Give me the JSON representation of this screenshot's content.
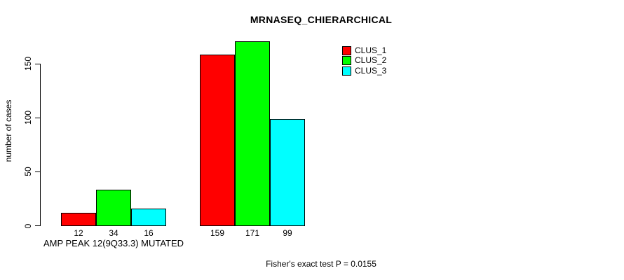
{
  "chart_data": {
    "type": "bar",
    "title": "MRNASEQ_CHIERARCHICAL",
    "ylabel": "number of cases",
    "xlabel": "",
    "yticks": [
      0,
      50,
      100,
      150
    ],
    "ylim": [
      0,
      171
    ],
    "grid": false,
    "legend_position": "top-right-inside",
    "legend": [
      {
        "label": "CLUS_1",
        "color": "#FF0000"
      },
      {
        "label": "CLUS_2",
        "color": "#00FF00"
      },
      {
        "label": "CLUS_3",
        "color": "#00FFFF"
      }
    ],
    "categories": [
      "AMP PEAK 12(9Q33.3) MUTATED",
      ""
    ],
    "series": [
      {
        "name": "CLUS_1",
        "values": [
          12,
          159
        ]
      },
      {
        "name": "CLUS_2",
        "values": [
          34,
          171
        ]
      },
      {
        "name": "CLUS_3",
        "values": [
          16,
          99
        ]
      }
    ],
    "groups": [
      {
        "label": "AMP PEAK 12(9Q33.3) MUTATED",
        "values": [
          12,
          34,
          16
        ]
      },
      {
        "label": "",
        "values": [
          159,
          171,
          99
        ]
      }
    ],
    "bar_value_labels": [
      [
        "12",
        "34",
        "16"
      ],
      [
        "159",
        "171",
        "99"
      ]
    ],
    "annotation": "Fisher's exact test P = 0.0155"
  },
  "colors": {
    "background": "#FFFFFF",
    "axis": "#000000",
    "text": "#000000",
    "bar_border": "#000000"
  }
}
